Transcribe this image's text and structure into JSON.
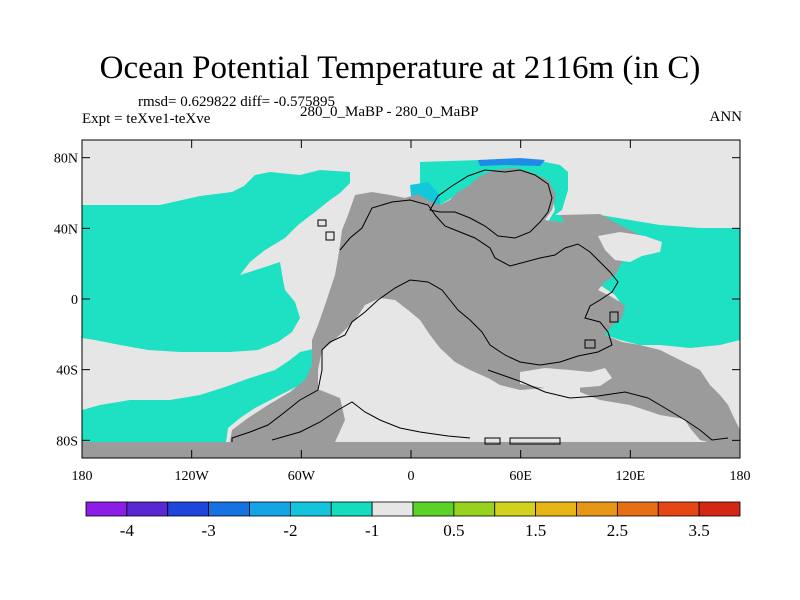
{
  "chart_data": {
    "type": "heatmap",
    "title": "Ocean Potential Temperature at 2116m (in C)",
    "stats": "rmsd= 0.629822 diff= -0.575895",
    "experiment": "Expt = teXve1-teXve",
    "subtitle": "280_0_MaBP - 280_0_MaBP",
    "season": "ANN",
    "x_ticks": [
      "180",
      "120W",
      "60W",
      "0",
      "60E",
      "120E",
      "180"
    ],
    "y_ticks": [
      "80N",
      "40N",
      "0",
      "40S",
      "80S"
    ],
    "xlim": [
      -180,
      180
    ],
    "ylim": [
      -90,
      90
    ],
    "colorbar": {
      "colors": [
        "#8c1ee6",
        "#5a28d2",
        "#1e46dc",
        "#1473e1",
        "#14a5e6",
        "#14c3dc",
        "#14dcbe",
        "#e6e6e6",
        "#5ad228",
        "#96d21e",
        "#d2d21e",
        "#e6b414",
        "#e69614",
        "#e66e14",
        "#e64614",
        "#d22814"
      ],
      "labels": [
        "-4",
        "-3",
        "-2",
        "-1",
        "0.5",
        "1.5",
        "2.5",
        "3.5"
      ]
    },
    "land_color": "#9b9b9b",
    "field_regions": [
      {
        "category": "-1",
        "color": "#1ee0c2"
      },
      {
        "category": "-1.5",
        "color": "#14c8dc"
      },
      {
        "category": "-2",
        "color": "#1e8ce6"
      },
      {
        "category": "0",
        "color": "#e6e6e6"
      }
    ]
  }
}
